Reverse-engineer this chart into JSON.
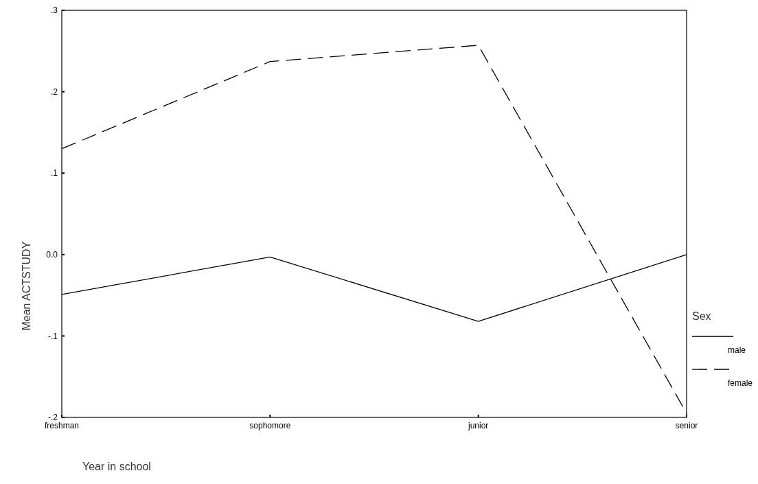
{
  "chart_data": {
    "type": "line",
    "xlabel": "Year in school",
    "ylabel": "Mean ACTSTUDY",
    "legend_title": "Sex",
    "categories": [
      "freshman",
      "sophomore",
      "junior",
      "senior"
    ],
    "series": [
      {
        "name": "male",
        "color": "#000000",
        "line_style": "solid",
        "values": [
          -0.049,
          -0.003,
          -0.082,
          0.0
        ]
      },
      {
        "name": "female",
        "color": "#000000",
        "line_style": "dashed",
        "values": [
          0.13,
          0.237,
          0.257,
          -0.195
        ]
      }
    ],
    "ylim": [
      -0.2,
      0.3
    ],
    "yticks": [
      {
        "value": -0.2,
        "label": "-.2"
      },
      {
        "value": -0.1,
        "label": "-.1"
      },
      {
        "value": 0,
        "label": "0.0"
      },
      {
        "value": 0.1,
        "label": ".1"
      },
      {
        "value": 0.2,
        "label": ".2"
      },
      {
        "value": 0.3,
        "label": ".3"
      }
    ],
    "grid": false,
    "legend": "right",
    "marker": "none"
  }
}
